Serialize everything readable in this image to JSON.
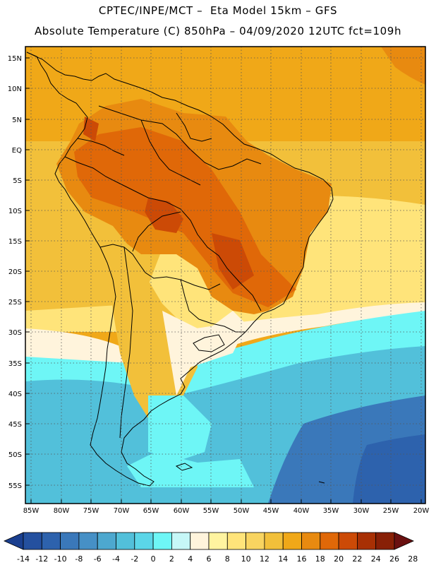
{
  "header": {
    "line1": "CPTEC/INPE/MCT –  Eta Model 15km – GFS",
    "line2": "Absolute Temperature (C) 850hPa – 04/09/2020 12UTC fct=109h"
  },
  "latitude_labels": [
    "15N",
    "10N",
    "5N",
    "EQ",
    "5S",
    "10S",
    "15S",
    "20S",
    "25S",
    "30S",
    "35S",
    "40S",
    "45S",
    "50S",
    "55S"
  ],
  "longitude_labels": [
    "85W",
    "80W",
    "75W",
    "70W",
    "65W",
    "60W",
    "55W",
    "50W",
    "45W",
    "40W",
    "35W",
    "30W",
    "25W",
    "20W"
  ],
  "colorbar": {
    "labels": [
      "-14",
      "-12",
      "-10",
      "-8",
      "-6",
      "-4",
      "-2",
      "0",
      "2",
      "4",
      "6",
      "8",
      "10",
      "12",
      "14",
      "16",
      "18",
      "20",
      "22",
      "24",
      "26",
      "28"
    ],
    "colors": [
      "#1a3f8f",
      "#24509f",
      "#2d62ad",
      "#3a78ba",
      "#4690c6",
      "#4da8cf",
      "#52c0da",
      "#5bd6e8",
      "#6ef6f6",
      "#c6f7f7",
      "#fff4dc",
      "#fff4a0",
      "#ffe47a",
      "#f8d460",
      "#f2c03a",
      "#f0a818",
      "#e88a10",
      "#e06808",
      "#cc4a06",
      "#a83004",
      "#882006",
      "#6a1010"
    ]
  },
  "field_colors": {
    "ocean_north": "#f0a818",
    "ocean_mid": "#f2c03a",
    "ocean_pale": "#ffe47a",
    "very_pale": "#fff4dc",
    "cyan_light": "#6ef6f6",
    "cyan": "#52c0da",
    "blue_mid": "#3a78ba",
    "blue_dark": "#2d62ad",
    "land_hot": "#e88a10",
    "land_hotter": "#e06808",
    "land_hottest": "#cc4a06",
    "land_andes": "#f2c03a"
  }
}
